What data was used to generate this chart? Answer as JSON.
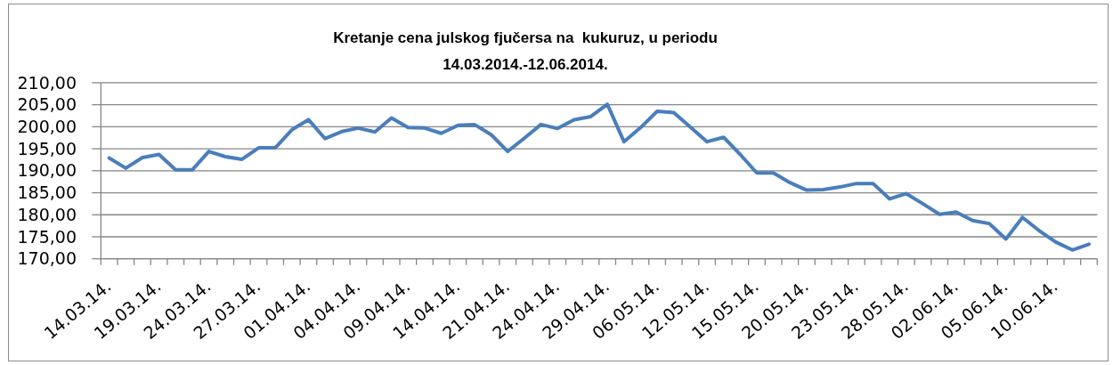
{
  "chart_data": {
    "type": "line",
    "title": "Kretanje cena julskog fjučersa na  kukuruz, u periodu\n14.03.2014.-12.06.2014.",
    "categories": [
      "14.03.14.",
      null,
      null,
      "19.03.14.",
      null,
      null,
      "24.03.14.",
      null,
      null,
      "27.03.14.",
      null,
      null,
      "01.04.14.",
      null,
      null,
      "04.04.14.",
      null,
      null,
      "09.04.14.",
      null,
      null,
      "14.04.14.",
      null,
      null,
      "21.04.14.",
      null,
      null,
      "24.04.14.",
      null,
      null,
      "29.04.14.",
      null,
      null,
      "06.05.14.",
      null,
      null,
      "12.05.14.",
      null,
      null,
      "15.05.14.",
      null,
      null,
      "20.05.14.",
      null,
      null,
      "23.05.14.",
      null,
      null,
      "28.05.14.",
      null,
      null,
      "02.06.14.",
      null,
      null,
      "05.06.14.",
      null,
      null,
      "10.06.14.",
      null,
      null
    ],
    "series": [
      {
        "color": "#4a7ebb",
        "values": [
          192.9,
          190.6,
          193.0,
          193.7,
          190.2,
          190.2,
          194.4,
          193.2,
          192.6,
          195.2,
          195.2,
          199.3,
          201.6,
          197.3,
          198.9,
          199.7,
          198.8,
          202.0,
          199.8,
          199.7,
          198.5,
          200.3,
          200.5,
          198.2,
          194.4,
          197.4,
          200.5,
          199.6,
          201.6,
          202.3,
          205.1,
          196.6,
          199.8,
          203.5,
          203.2,
          199.9,
          196.6,
          197.6,
          193.7,
          189.5,
          189.5,
          187.3,
          185.6,
          185.7,
          186.3,
          187.1,
          187.1,
          183.6,
          184.8,
          182.5,
          180.1,
          180.6,
          178.7,
          178.0,
          174.5,
          179.4,
          176.4,
          173.8,
          172.0,
          173.3
        ]
      }
    ],
    "ylim": [
      170,
      210
    ],
    "yticks": [
      {
        "value": 170,
        "label": "170,00"
      },
      {
        "value": 175,
        "label": "175,00"
      },
      {
        "value": 180,
        "label": "180,00"
      },
      {
        "value": 185,
        "label": "185,00"
      },
      {
        "value": 190,
        "label": "190,00"
      },
      {
        "value": 195,
        "label": "195,00"
      },
      {
        "value": 200,
        "label": "200,00"
      },
      {
        "value": 205,
        "label": "205,00"
      },
      {
        "value": 210,
        "label": "210,00"
      }
    ],
    "grid": "y"
  }
}
